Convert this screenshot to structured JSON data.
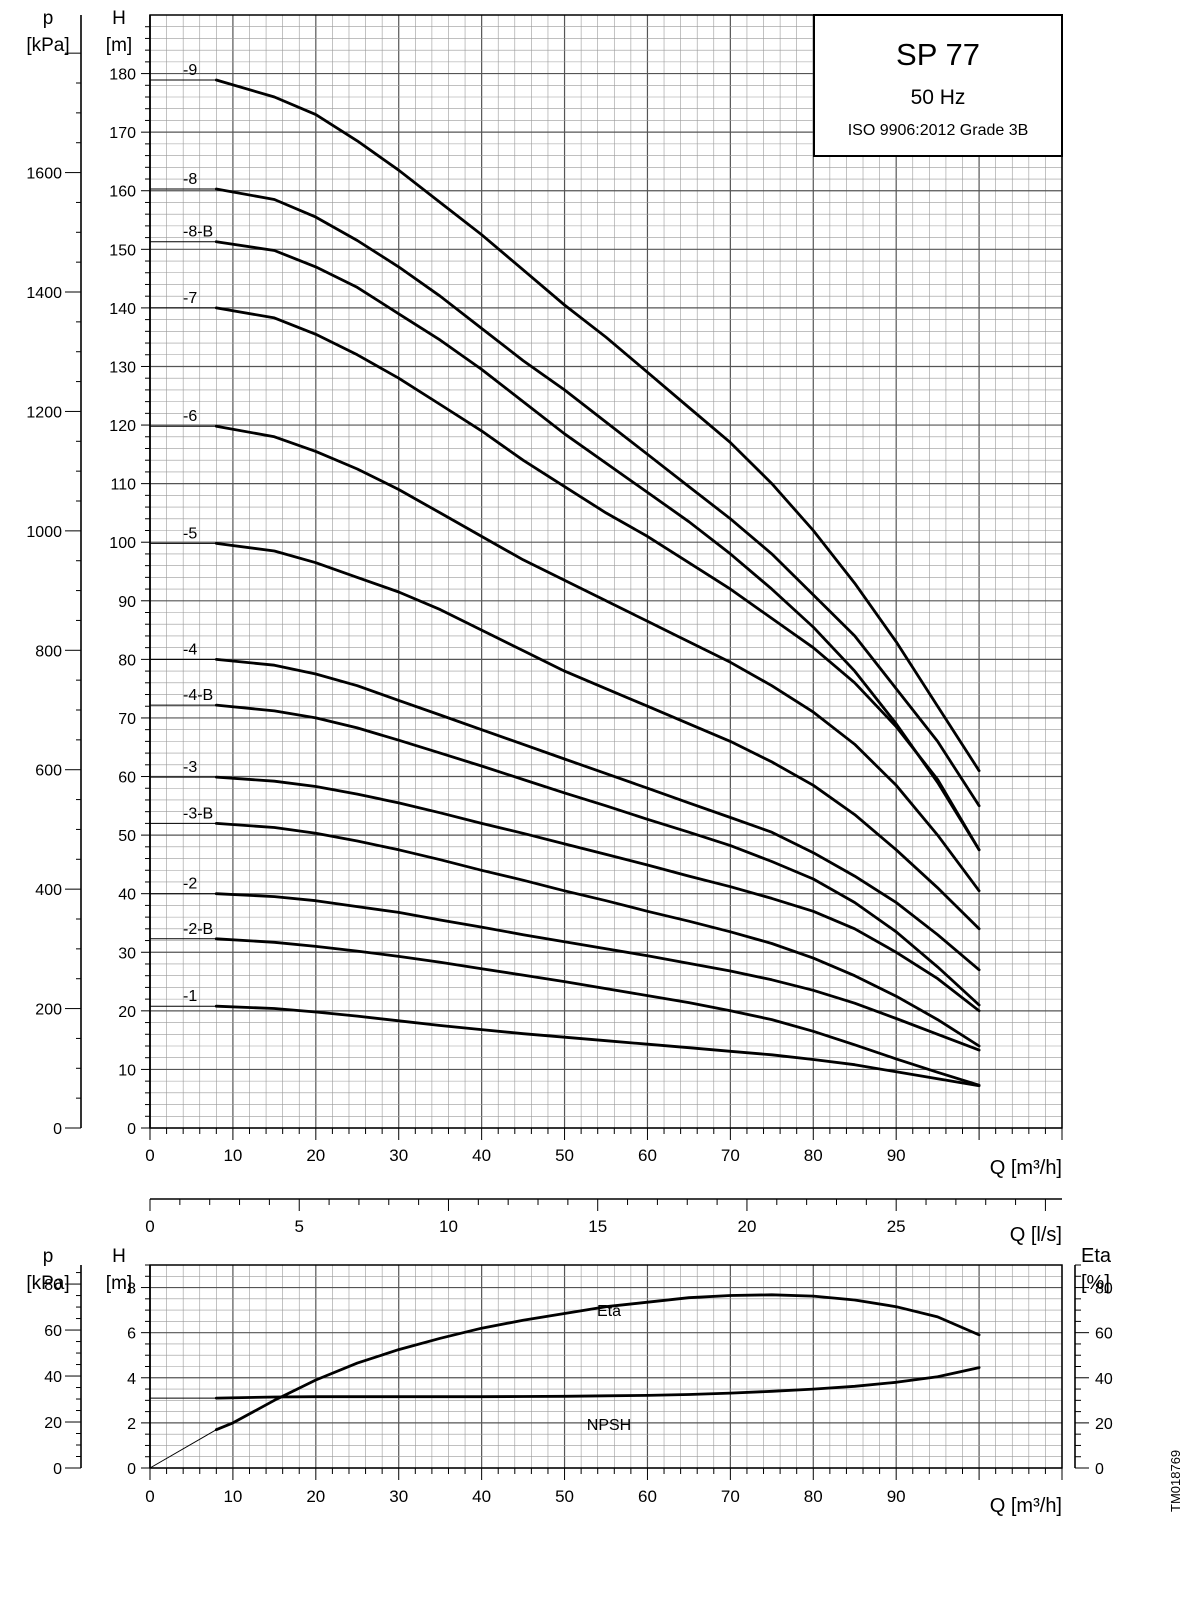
{
  "title_box": {
    "title": "SP 77",
    "frequency": "50 Hz",
    "standard": "ISO 9906:2012 Grade 3B"
  },
  "axis_text": {
    "p_symbol": "p",
    "p_unit": "[kPa]",
    "h_symbol": "H",
    "h_unit": "[m]",
    "q_m3h": "Q [m³/h]",
    "q_ls": "Q [l/s]",
    "eta_symbol": "Eta",
    "eta_unit": "[%]"
  },
  "side_code": "TM018769",
  "chart_data": [
    {
      "type": "line",
      "name": "pump-curves",
      "xlabel": "Q [m³/h]",
      "ylabel": "H [m]",
      "secondary_ylabel": "p [kPa]",
      "xlim": [
        0,
        110
      ],
      "ylim": [
        0,
        190
      ],
      "x_ticks": [
        "0",
        "10",
        "20",
        "30",
        "40",
        "50",
        "60",
        "70",
        "80",
        "90"
      ],
      "h_ticks": [
        "0",
        "10",
        "20",
        "30",
        "40",
        "50",
        "60",
        "70",
        "80",
        "90",
        "100",
        "110",
        "120",
        "130",
        "140",
        "150",
        "160",
        "170",
        "180"
      ],
      "p_ticks": [
        "0",
        "200",
        "400",
        "600",
        "800",
        "1000",
        "1200",
        "1400",
        "1600"
      ],
      "q_ls_ticks": [
        "0",
        "5",
        "10",
        "15",
        "20",
        "25"
      ],
      "grid": true,
      "series": [
        {
          "name": "-9",
          "shutoff": 178.9,
          "x": [
            8,
            15,
            20,
            25,
            30,
            35,
            40,
            45,
            50,
            55,
            60,
            65,
            70,
            75,
            80,
            85,
            90,
            95,
            100
          ],
          "y": [
            178.9,
            176,
            173,
            168.5,
            163.5,
            158,
            152.5,
            146.5,
            140.5,
            135,
            129,
            123,
            117,
            110,
            102,
            93,
            83,
            72,
            61
          ]
        },
        {
          "name": "-8",
          "shutoff": 160.3,
          "x": [
            8,
            15,
            20,
            25,
            30,
            35,
            40,
            45,
            50,
            55,
            60,
            65,
            70,
            75,
            80,
            85,
            90,
            95,
            100
          ],
          "y": [
            160.3,
            158.5,
            155.5,
            151.5,
            147,
            142,
            136.5,
            131,
            126,
            120.5,
            115,
            109.5,
            104,
            98,
            91,
            84,
            75,
            66,
            55
          ]
        },
        {
          "name": "-8-B",
          "shutoff": 151.3,
          "x": [
            8,
            15,
            20,
            25,
            30,
            35,
            40,
            45,
            50,
            55,
            60,
            65,
            70,
            75,
            80,
            85,
            90,
            95,
            100
          ],
          "y": [
            151.3,
            149.8,
            147,
            143.5,
            139,
            134.5,
            129.5,
            124,
            118.5,
            113.5,
            108.5,
            103.5,
            98,
            92,
            85.5,
            78,
            69,
            59,
            47.5
          ]
        },
        {
          "name": "-7",
          "shutoff": 140.0,
          "x": [
            8,
            15,
            20,
            25,
            30,
            35,
            40,
            45,
            50,
            55,
            60,
            65,
            70,
            75,
            80,
            85,
            90,
            95,
            100
          ],
          "y": [
            140,
            138.3,
            135.5,
            132,
            128,
            123.5,
            119,
            114,
            109.5,
            105,
            101,
            96.5,
            92,
            87,
            82,
            76,
            68.5,
            59.5,
            47.5
          ]
        },
        {
          "name": "-6",
          "shutoff": 119.8,
          "x": [
            8,
            15,
            20,
            25,
            30,
            35,
            40,
            45,
            50,
            55,
            60,
            65,
            70,
            75,
            80,
            85,
            90,
            95,
            100
          ],
          "y": [
            119.8,
            118,
            115.5,
            112.5,
            109,
            105,
            101,
            97,
            93.5,
            90,
            86.5,
            83,
            79.5,
            75.5,
            71,
            65.5,
            58.5,
            50,
            40.5
          ]
        },
        {
          "name": "-5",
          "shutoff": 99.8,
          "x": [
            8,
            15,
            20,
            25,
            30,
            35,
            40,
            45,
            50,
            55,
            60,
            65,
            70,
            75,
            80,
            85,
            90,
            95,
            100
          ],
          "y": [
            99.8,
            98.5,
            96.5,
            94,
            91.5,
            88.5,
            85,
            81.5,
            78,
            75,
            72,
            69,
            66,
            62.5,
            58.5,
            53.5,
            47.5,
            41,
            34
          ]
        },
        {
          "name": "-4",
          "shutoff": 80.0,
          "x": [
            8,
            15,
            20,
            25,
            30,
            35,
            40,
            45,
            50,
            55,
            60,
            65,
            70,
            75,
            80,
            85,
            90,
            95,
            100
          ],
          "y": [
            80,
            79,
            77.5,
            75.5,
            73,
            70.5,
            68,
            65.5,
            63,
            60.5,
            58,
            55.5,
            53,
            50.5,
            47,
            43,
            38.5,
            33,
            27
          ]
        },
        {
          "name": "-4-B",
          "shutoff": 72.2,
          "x": [
            8,
            15,
            20,
            25,
            30,
            35,
            40,
            45,
            50,
            55,
            60,
            65,
            70,
            75,
            80,
            85,
            90,
            95,
            100
          ],
          "y": [
            72.2,
            71.2,
            70,
            68.3,
            66.2,
            64,
            61.8,
            59.5,
            57.2,
            55,
            52.7,
            50.5,
            48.2,
            45.5,
            42.5,
            38.5,
            33.5,
            27.5,
            21
          ]
        },
        {
          "name": "-3",
          "shutoff": 59.9,
          "x": [
            8,
            15,
            20,
            25,
            30,
            35,
            40,
            45,
            50,
            55,
            60,
            65,
            70,
            75,
            80,
            85,
            90,
            95,
            100
          ],
          "y": [
            59.9,
            59.2,
            58.3,
            57,
            55.5,
            53.8,
            52,
            50.3,
            48.5,
            46.7,
            44.9,
            43,
            41.2,
            39.2,
            37,
            34,
            30,
            25.5,
            20
          ]
        },
        {
          "name": "-3-B",
          "shutoff": 52.0,
          "x": [
            8,
            15,
            20,
            25,
            30,
            35,
            40,
            45,
            50,
            55,
            60,
            65,
            70,
            75,
            80,
            85,
            90,
            95,
            100
          ],
          "y": [
            52,
            51.3,
            50.3,
            49,
            47.5,
            45.8,
            44,
            42.3,
            40.5,
            38.8,
            37,
            35.3,
            33.5,
            31.5,
            29,
            26,
            22.5,
            18.5,
            14
          ]
        },
        {
          "name": "-2",
          "shutoff": 40.0,
          "x": [
            8,
            15,
            20,
            25,
            30,
            35,
            40,
            45,
            50,
            55,
            60,
            65,
            70,
            75,
            80,
            85,
            90,
            95,
            100
          ],
          "y": [
            40,
            39.5,
            38.8,
            37.8,
            36.8,
            35.5,
            34.3,
            33,
            31.8,
            30.6,
            29.4,
            28.1,
            26.8,
            25.3,
            23.5,
            21.3,
            18.7,
            16,
            13.3
          ]
        },
        {
          "name": "-2-B",
          "shutoff": 32.3,
          "x": [
            8,
            15,
            20,
            25,
            30,
            35,
            40,
            45,
            50,
            55,
            60,
            65,
            70,
            75,
            80,
            85,
            90,
            95,
            100
          ],
          "y": [
            32.3,
            31.7,
            31,
            30.2,
            29.3,
            28.3,
            27.2,
            26.1,
            25,
            23.8,
            22.6,
            21.4,
            20,
            18.5,
            16.5,
            14.2,
            11.8,
            9.5,
            7.3
          ]
        },
        {
          "name": "-1",
          "shutoff": 20.8,
          "x": [
            8,
            15,
            20,
            25,
            30,
            35,
            40,
            45,
            50,
            55,
            60,
            65,
            70,
            75,
            80,
            85,
            90,
            95,
            100
          ],
          "y": [
            20.8,
            20.4,
            19.8,
            19.1,
            18.3,
            17.5,
            16.8,
            16.1,
            15.5,
            14.9,
            14.3,
            13.7,
            13.1,
            12.5,
            11.7,
            10.8,
            9.6,
            8.4,
            7.2
          ]
        }
      ]
    },
    {
      "type": "line",
      "name": "npsh-eta",
      "xlabel": "Q [m³/h]",
      "ylabel": "H [m]",
      "secondary_ylabel": "p [kPa]",
      "tertiary_ylabel": "Eta [%]",
      "xlim": [
        0,
        110
      ],
      "ylim_h": [
        0,
        9
      ],
      "h_ticks": [
        "0",
        "2",
        "4",
        "6",
        "8"
      ],
      "p_ticks": [
        "0",
        "20",
        "40",
        "60",
        "80"
      ],
      "eta_ticks": [
        "0",
        "20",
        "40",
        "60",
        "80"
      ],
      "grid": true,
      "series": [
        {
          "name": "Eta",
          "unit": "%",
          "x": [
            0,
            8,
            10,
            15,
            20,
            25,
            30,
            35,
            40,
            45,
            50,
            55,
            60,
            65,
            70,
            75,
            80,
            85,
            90,
            95,
            100
          ],
          "y": [
            0,
            17,
            20,
            30,
            39,
            46.5,
            52.5,
            57.5,
            62,
            65.5,
            68.5,
            71.5,
            73.5,
            75.5,
            76.5,
            76.8,
            76.2,
            74.5,
            71.5,
            67,
            59
          ]
        },
        {
          "name": "NPSH",
          "unit": "m",
          "x": [
            8,
            15,
            20,
            25,
            30,
            35,
            40,
            45,
            50,
            55,
            60,
            65,
            70,
            75,
            80,
            85,
            90,
            95,
            100
          ],
          "y": [
            3.1,
            3.15,
            3.16,
            3.16,
            3.16,
            3.16,
            3.16,
            3.17,
            3.18,
            3.2,
            3.22,
            3.26,
            3.32,
            3.4,
            3.5,
            3.62,
            3.8,
            4.05,
            4.45
          ]
        }
      ]
    }
  ]
}
